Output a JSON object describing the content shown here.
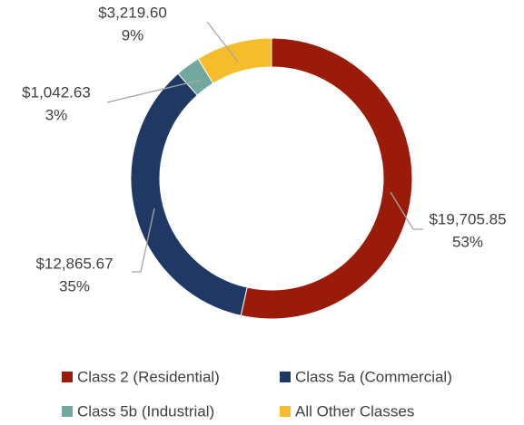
{
  "chart_data": {
    "type": "donut",
    "categories": [
      "Class 2 (Residential)",
      "Class 5a (Commercial)",
      "Class 5b (Industrial)",
      "All Other Classes"
    ],
    "values": [
      19705.85,
      12865.67,
      1042.63,
      3219.6
    ],
    "value_labels": [
      "$19,705.85",
      "$12,865.67",
      "$1,042.63",
      "$3,219.60"
    ],
    "percent_labels": [
      "53%",
      "35%",
      "3%",
      "9%"
    ],
    "colors": [
      "#9b1b0b",
      "#1f3864",
      "#70a8a0",
      "#f5bc2c"
    ],
    "legend": "bottom"
  }
}
